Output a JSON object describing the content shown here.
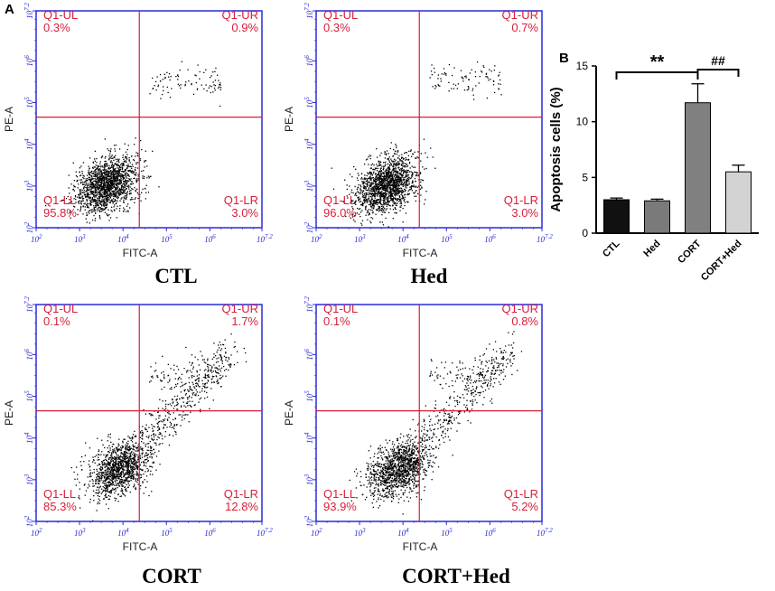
{
  "panel_labels": {
    "a": "A",
    "b": "B"
  },
  "flow_axes": {
    "x_label": "FITC-A",
    "y_label": "PE-A",
    "x_ticks": [
      {
        "base": "10",
        "exp": "2"
      },
      {
        "base": "10",
        "exp": "3"
      },
      {
        "base": "10",
        "exp": "4"
      },
      {
        "base": "10",
        "exp": "5"
      },
      {
        "base": "10",
        "exp": "6"
      },
      {
        "base": "10",
        "exp": "7.2"
      }
    ],
    "y_ticks": [
      {
        "base": "10",
        "exp": "2"
      },
      {
        "base": "10",
        "exp": "3"
      },
      {
        "base": "10",
        "exp": "4"
      },
      {
        "base": "10",
        "exp": "5"
      },
      {
        "base": "10",
        "exp": "6"
      },
      {
        "base": "10",
        "exp": "7.2"
      }
    ]
  },
  "flow_plots": [
    {
      "title": "CTL",
      "quadrants": {
        "ul": {
          "name": "Q1-UL",
          "value": "0.3%"
        },
        "ur": {
          "name": "Q1-UR",
          "value": "0.9%"
        },
        "ll": {
          "name": "Q1-LL",
          "value": "95.8%"
        },
        "lr": {
          "name": "Q1-LR",
          "value": "3.0%"
        }
      }
    },
    {
      "title": "Hed",
      "quadrants": {
        "ul": {
          "name": "Q1-UL",
          "value": "0.3%"
        },
        "ur": {
          "name": "Q1-UR",
          "value": "0.7%"
        },
        "ll": {
          "name": "Q1-LL",
          "value": "96.0%"
        },
        "lr": {
          "name": "Q1-LR",
          "value": "3.0%"
        }
      }
    },
    {
      "title": "CORT",
      "quadrants": {
        "ul": {
          "name": "Q1-UL",
          "value": "0.1%"
        },
        "ur": {
          "name": "Q1-UR",
          "value": "1.7%"
        },
        "ll": {
          "name": "Q1-LL",
          "value": "85.3%"
        },
        "lr": {
          "name": "Q1-LR",
          "value": "12.8%"
        }
      }
    },
    {
      "title": "CORT+Hed",
      "quadrants": {
        "ul": {
          "name": "Q1-UL",
          "value": "0.1%"
        },
        "ur": {
          "name": "Q1-UR",
          "value": "0.8%"
        },
        "ll": {
          "name": "Q1-LL",
          "value": "93.9%"
        },
        "lr": {
          "name": "Q1-LR",
          "value": "5.2%"
        }
      }
    }
  ],
  "chart_data": {
    "type": "bar",
    "title": "",
    "xlabel": "",
    "ylabel": "Apoptosis cells (%)",
    "ylim": [
      0,
      15
    ],
    "yticks": [
      0,
      5,
      10,
      15
    ],
    "categories": [
      "CTL",
      "Hed",
      "CORT",
      "CORT+Hed"
    ],
    "values": [
      3.0,
      2.9,
      11.7,
      5.5
    ],
    "errors": [
      0.15,
      0.15,
      1.7,
      0.6
    ],
    "bar_colors": [
      "#111111",
      "#7a7a7a",
      "#808080",
      "#d3d3d3"
    ],
    "significance": [
      {
        "from": "CTL",
        "to": "CORT",
        "label": "**"
      },
      {
        "from": "CORT",
        "to": "CORT+Hed",
        "label": "##"
      }
    ]
  },
  "colors": {
    "axis_blue": "#2a2ad8",
    "quadrant_red": "#d81e3a",
    "dot": "#000000"
  }
}
